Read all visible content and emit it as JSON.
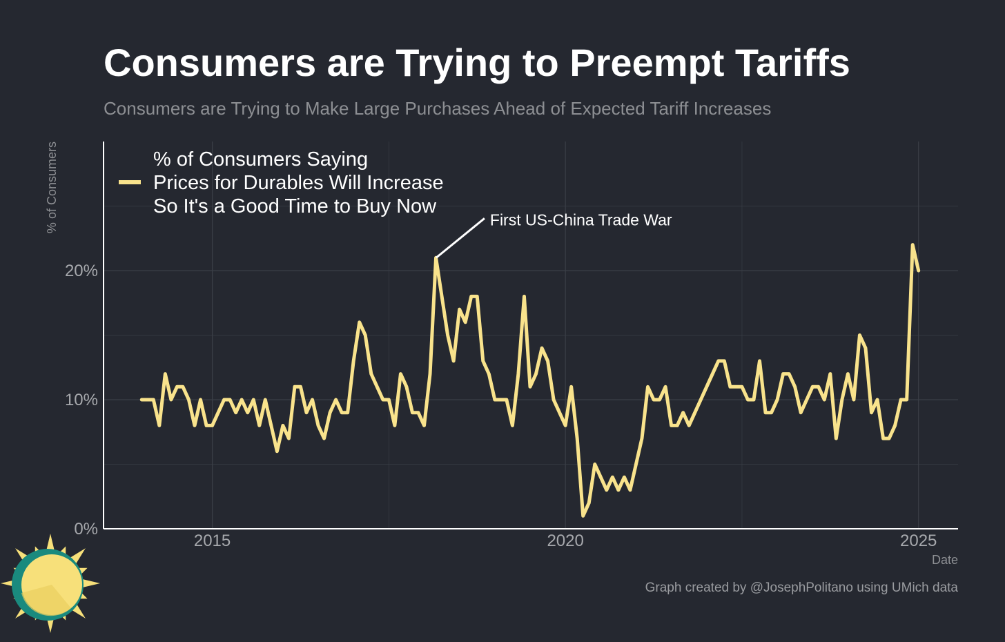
{
  "title": "Consumers are Trying to Preempt Tariffs",
  "subtitle": "Consumers are Trying to Make Large Purchases Ahead of Expected Tariff Increases",
  "credit": "Graph created by @JosephPolitano using UMich data",
  "logo": {
    "icon": "sun-logo-icon",
    "colors": [
      "#f7e07a",
      "#1a8a7e"
    ]
  },
  "colors": {
    "background": "#252830",
    "series": "#f9e38c",
    "grid": "#3b3f47",
    "axis": "#ffffff"
  },
  "chart_data": {
    "type": "line",
    "title": "Consumers are Trying to Preempt Tariffs",
    "xlabel": "Date",
    "ylabel": "% of Consumers",
    "xlim": [
      2013.46,
      2025.56
    ],
    "ylim": [
      0,
      30
    ],
    "x_ticks": [
      {
        "value": 2015,
        "label": "2015"
      },
      {
        "value": 2020,
        "label": "2020"
      },
      {
        "value": 2025,
        "label": "2025"
      }
    ],
    "y_ticks": [
      {
        "value": 0,
        "label": "0%"
      },
      {
        "value": 10,
        "label": "10%"
      },
      {
        "value": 20,
        "label": "20%"
      }
    ],
    "grid": true,
    "legend_position": "top-left",
    "series": [
      {
        "name": "% of Consumers Saying\nPrices for Durables Will Increase\nSo It's a Good Time to Buy Now",
        "x_start": 2014.0,
        "x_step": 0.0833333,
        "values": [
          10,
          10,
          10,
          8,
          12,
          10,
          11,
          11,
          10,
          8,
          10,
          8,
          8,
          9,
          10,
          10,
          9,
          10,
          9,
          10,
          8,
          10,
          8,
          6,
          8,
          7,
          11,
          11,
          9,
          10,
          8,
          7,
          9,
          10,
          9,
          9,
          13,
          16,
          15,
          12,
          11,
          10,
          10,
          8,
          12,
          11,
          9,
          9,
          8,
          12,
          21,
          18,
          15,
          13,
          17,
          16,
          18,
          18,
          13,
          12,
          10,
          10,
          10,
          8,
          12,
          18,
          11,
          12,
          14,
          13,
          10,
          9,
          8,
          11,
          7,
          1,
          2,
          5,
          4,
          3,
          4,
          3,
          4,
          3,
          5,
          7,
          11,
          10,
          10,
          11,
          8,
          8,
          9,
          8,
          9,
          10,
          11,
          12,
          13,
          13,
          11,
          11,
          11,
          10,
          10,
          13,
          9,
          9,
          10,
          12,
          12,
          11,
          9,
          10,
          11,
          11,
          10,
          12,
          7,
          10,
          12,
          10,
          15,
          14,
          9,
          10,
          7,
          7,
          8,
          10,
          10,
          22,
          20
        ]
      }
    ],
    "annotations": [
      {
        "text": "First US-China Trade War",
        "x": 2018.17,
        "y": 21
      }
    ]
  }
}
